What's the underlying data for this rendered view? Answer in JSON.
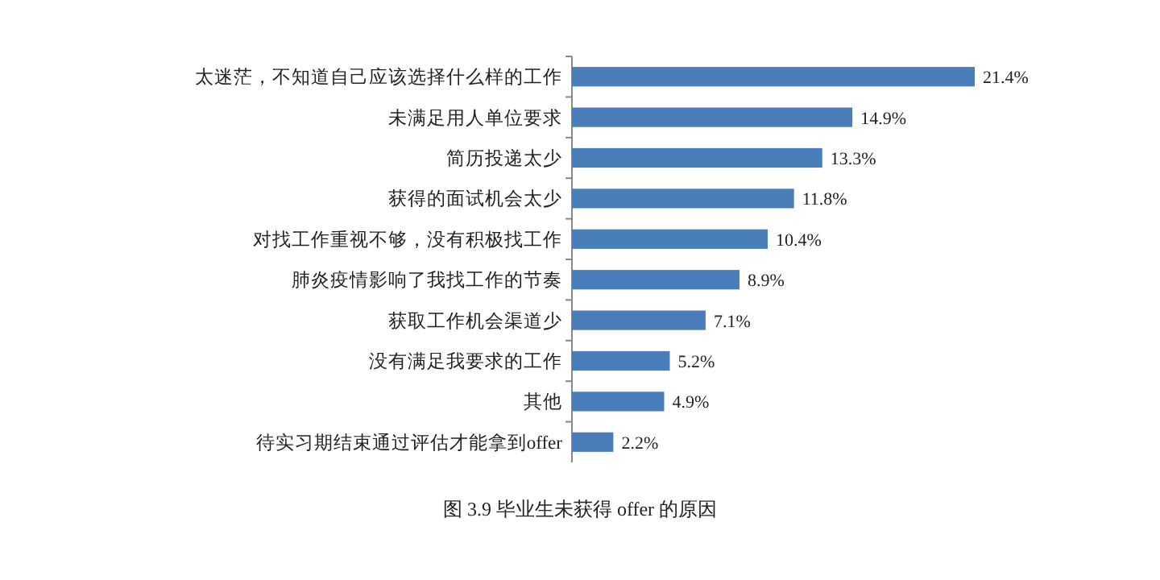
{
  "chart_data": {
    "type": "bar",
    "orientation": "horizontal",
    "title": "图 3.9  毕业生未获得 offer 的原因",
    "categories": [
      "太迷茫，不知道自己应该选择什么样的工作",
      "未满足用人单位要求",
      "简历投递太少",
      "获得的面试机会太少",
      "对找工作重视不够，没有积极找工作",
      "肺炎疫情影响了我找工作的节奏",
      "获取工作机会渠道少",
      "没有满足我要求的工作",
      "其他",
      "待实习期结束通过评估才能拿到offer"
    ],
    "values": [
      21.4,
      14.9,
      13.3,
      11.8,
      10.4,
      8.9,
      7.1,
      5.2,
      4.9,
      2.2
    ],
    "value_labels": [
      "21.4%",
      "14.9%",
      "13.3%",
      "11.8%",
      "10.4%",
      "8.9%",
      "7.1%",
      "5.2%",
      "4.9%",
      "2.2%"
    ],
    "color": "#4a7ebb"
  }
}
